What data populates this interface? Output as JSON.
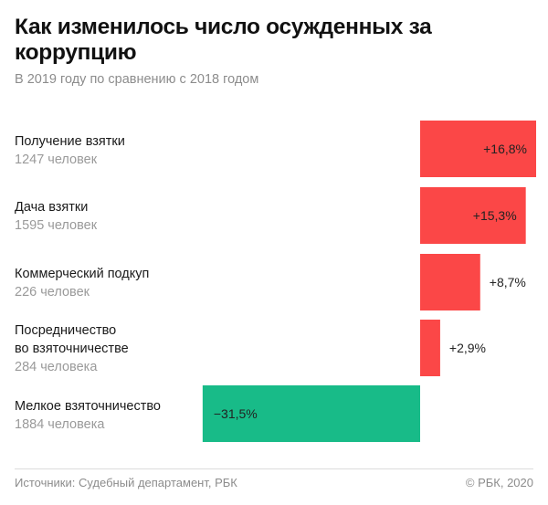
{
  "title": "Как изменилось число осужденных за коррупцию",
  "subtitle": "В 2019 году по сравнению с 2018 годом",
  "colors": {
    "positive": "#fb4747",
    "negative": "#18bb88",
    "label_dark": "#1a1a1a"
  },
  "chart_data": {
    "type": "bar",
    "orientation": "horizontal",
    "title": "Как изменилось число осужденных за коррупцию",
    "subtitle": "В 2019 году по сравнению с 2018 годом",
    "unit": "%",
    "categories": [
      {
        "label": "Получение взятки",
        "label_lines": [
          "Получение взятки"
        ],
        "count": "1247 человек"
      },
      {
        "label": "Дача взятки",
        "label_lines": [
          "Дача взятки"
        ],
        "count": "1595 человек"
      },
      {
        "label": "Коммерческий подкуп",
        "label_lines": [
          "Коммерческий подкуп"
        ],
        "count": "226 человек"
      },
      {
        "label": "Посредничество во взяточничестве",
        "label_lines": [
          "Посредничество",
          "во взяточничестве"
        ],
        "count": "284 человека"
      },
      {
        "label": "Мелкое взяточничество",
        "label_lines": [
          "Мелкое взяточничество"
        ],
        "count": "1884 человека"
      }
    ],
    "values": [
      16.8,
      15.3,
      8.7,
      2.9,
      -31.5
    ],
    "value_labels": [
      "+16,8%",
      "+15,3%",
      "+8,7%",
      "+2,9%",
      "−31,5%"
    ],
    "xlim": [
      -31.5,
      16.8
    ],
    "grid": false,
    "legend": "none"
  },
  "footer": {
    "source": "Источники: Судебный департамент, РБК",
    "copyright": "© РБК, 2020"
  }
}
